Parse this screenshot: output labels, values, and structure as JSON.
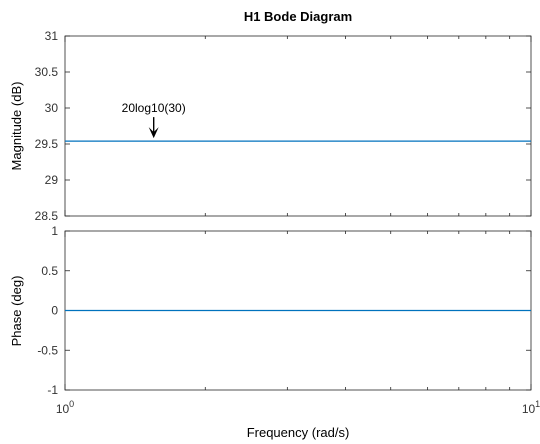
{
  "chart_data": {
    "type": "line",
    "title": "H1 Bode Diagram",
    "xlabel": "Frequency  (rad/s)",
    "x_scale": "log",
    "xlim": [
      1,
      10
    ],
    "x_ticks": [
      {
        "value": 1,
        "base": "10",
        "exp": "0"
      },
      {
        "value": 10,
        "base": "10",
        "exp": "1"
      }
    ],
    "panels": [
      {
        "ylabel": "Magnitude (dB)",
        "ylim": [
          28.5,
          31
        ],
        "yticks": [
          28.5,
          29,
          29.5,
          30,
          30.5,
          31
        ],
        "ytick_labels": [
          "28.5",
          "29",
          "29.5",
          "30",
          "30.5",
          "31"
        ],
        "series": [
          {
            "x": [
              1,
              10
            ],
            "y": [
              29.54,
              29.54
            ],
            "color": "#0072BD"
          }
        ],
        "annotation": {
          "text": "20log10(30)",
          "x": 1.55,
          "y": 29.54
        }
      },
      {
        "ylabel": "Phase (deg)",
        "ylim": [
          -1,
          1
        ],
        "yticks": [
          -1,
          -0.5,
          0,
          0.5,
          1
        ],
        "ytick_labels": [
          "-1",
          "-0.5",
          "0",
          "0.5",
          "1"
        ],
        "series": [
          {
            "x": [
              1,
              10
            ],
            "y": [
              0,
              0
            ],
            "color": "#0072BD"
          }
        ]
      }
    ]
  }
}
